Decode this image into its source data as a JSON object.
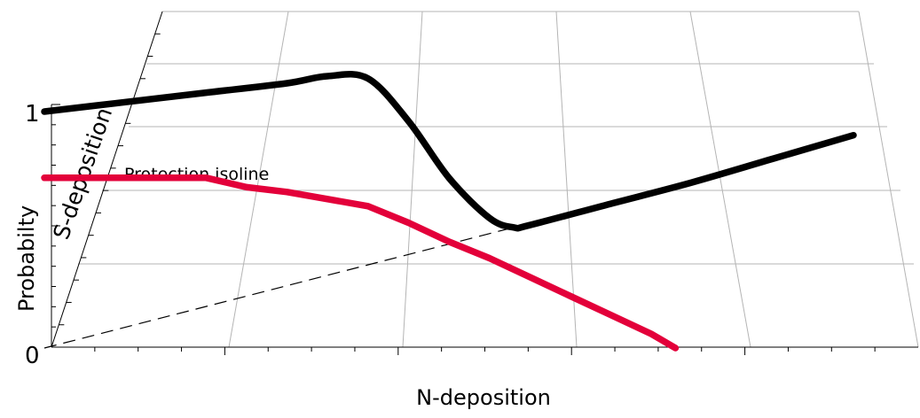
{
  "chart_data": {
    "type": "line",
    "projection": "perspective-3d",
    "xlabel": "N-deposition",
    "ylabel": "Probabilty",
    "zlabel": "S-deposition",
    "y_tick_labels": [
      "0",
      "1"
    ],
    "annotation": "Protection isoline",
    "grid": true,
    "series": [
      {
        "color": "#000000",
        "style": "solid",
        "points": [
          [
            0.0,
            1.0
          ],
          [
            0.1,
            1.04
          ],
          [
            0.2,
            1.08
          ],
          [
            0.3,
            1.12
          ],
          [
            0.35,
            1.15
          ],
          [
            0.4,
            1.14
          ],
          [
            0.45,
            0.96
          ],
          [
            0.5,
            0.72
          ],
          [
            0.55,
            0.55
          ],
          [
            0.58,
            0.51
          ],
          [
            0.6,
            0.52
          ],
          [
            0.7,
            0.61
          ],
          [
            0.8,
            0.7
          ],
          [
            0.9,
            0.8
          ],
          [
            1.0,
            0.9
          ]
        ]
      },
      {
        "color": "#e3003a",
        "style": "solid",
        "points": [
          [
            0.0,
            0.72
          ],
          [
            0.2,
            0.72
          ],
          [
            0.25,
            0.68
          ],
          [
            0.3,
            0.66
          ],
          [
            0.35,
            0.63
          ],
          [
            0.4,
            0.6
          ],
          [
            0.45,
            0.53
          ],
          [
            0.5,
            0.45
          ],
          [
            0.55,
            0.38
          ],
          [
            0.6,
            0.3
          ],
          [
            0.65,
            0.22
          ],
          [
            0.7,
            0.14
          ],
          [
            0.75,
            0.06
          ],
          [
            0.78,
            0.0
          ]
        ]
      },
      {
        "color": "#000000",
        "style": "dashed",
        "points": [
          [
            0.0,
            0.0
          ],
          [
            0.58,
            0.51
          ]
        ]
      }
    ]
  }
}
